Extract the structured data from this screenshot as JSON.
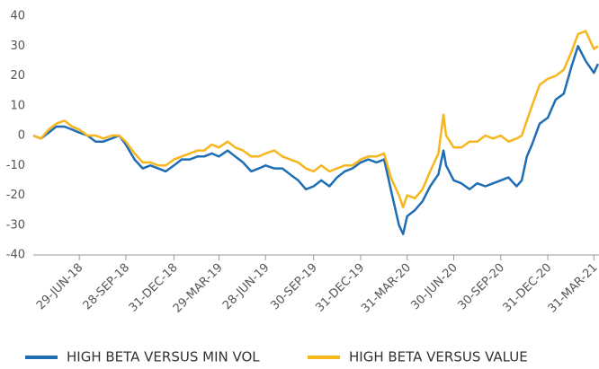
{
  "chart_data": {
    "type": "line",
    "x": [
      "2018-03-31",
      "2018-04-15",
      "2018-04-30",
      "2018-05-15",
      "2018-05-31",
      "2018-06-15",
      "2018-06-29",
      "2018-07-15",
      "2018-07-31",
      "2018-08-15",
      "2018-08-31",
      "2018-09-15",
      "2018-09-28",
      "2018-10-15",
      "2018-10-31",
      "2018-11-15",
      "2018-11-30",
      "2018-12-15",
      "2018-12-31",
      "2019-01-15",
      "2019-01-31",
      "2019-02-15",
      "2019-02-28",
      "2019-03-15",
      "2019-03-29",
      "2019-04-15",
      "2019-04-30",
      "2019-05-15",
      "2019-05-31",
      "2019-06-15",
      "2019-06-28",
      "2019-07-15",
      "2019-07-31",
      "2019-08-15",
      "2019-08-31",
      "2019-09-15",
      "2019-09-30",
      "2019-10-15",
      "2019-10-31",
      "2019-11-15",
      "2019-11-30",
      "2019-12-15",
      "2019-12-31",
      "2020-01-15",
      "2020-01-31",
      "2020-02-15",
      "2020-02-28",
      "2020-03-15",
      "2020-03-23",
      "2020-03-31",
      "2020-04-15",
      "2020-04-30",
      "2020-05-15",
      "2020-05-31",
      "2020-06-10",
      "2020-06-15",
      "2020-06-30",
      "2020-07-15",
      "2020-07-31",
      "2020-08-15",
      "2020-08-31",
      "2020-09-15",
      "2020-09-30",
      "2020-10-15",
      "2020-10-31",
      "2020-11-10",
      "2020-11-20",
      "2020-11-30",
      "2020-12-15",
      "2020-12-31",
      "2021-01-15",
      "2021-01-31",
      "2021-02-15",
      "2021-02-28",
      "2021-03-15",
      "2021-03-31",
      "2021-04-08"
    ],
    "series": [
      {
        "name": "HIGH BETA VERSUS MIN VOL",
        "color": "#1f6db4",
        "values": [
          0,
          -1,
          1,
          3,
          3,
          2,
          1,
          0,
          -2,
          -2,
          -1,
          0,
          -3,
          -8,
          -11,
          -10,
          -11,
          -12,
          -10,
          -8,
          -8,
          -7,
          -7,
          -6,
          -7,
          -5,
          -7,
          -9,
          -12,
          -11,
          -10,
          -11,
          -11,
          -13,
          -15,
          -18,
          -17,
          -15,
          -17,
          -14,
          -12,
          -11,
          -9,
          -8,
          -9,
          -8,
          -18,
          -30,
          -33,
          -27,
          -25,
          -22,
          -17,
          -13,
          -5,
          -10,
          -15,
          -16,
          -18,
          -16,
          -17,
          -16,
          -15,
          -14,
          -17,
          -15,
          -7,
          -3,
          4,
          6,
          12,
          14,
          23,
          30,
          25,
          21,
          24
        ]
      },
      {
        "name": "HIGH BETA VERSUS VALUE",
        "color": "#f6b61c",
        "values": [
          0,
          -1,
          2,
          4,
          5,
          3,
          2,
          0,
          0,
          -1,
          0,
          0,
          -2,
          -6,
          -9,
          -9,
          -10,
          -10,
          -8,
          -7,
          -6,
          -5,
          -5,
          -3,
          -4,
          -2,
          -4,
          -5,
          -7,
          -7,
          -6,
          -5,
          -7,
          -8,
          -9,
          -11,
          -12,
          -10,
          -12,
          -11,
          -10,
          -10,
          -8,
          -7,
          -7,
          -6,
          -14,
          -20,
          -24,
          -20,
          -21,
          -18,
          -12,
          -6,
          7,
          0,
          -4,
          -4,
          -2,
          -2,
          0,
          -1,
          0,
          -2,
          -1,
          0,
          5,
          10,
          17,
          19,
          20,
          22,
          28,
          34,
          35,
          29,
          30
        ]
      }
    ],
    "xlim": [
      "2018-03-31",
      "2021-04-10"
    ],
    "xticks": [
      {
        "value": "2018-06-29",
        "label": "29-JUN-18"
      },
      {
        "value": "2018-09-28",
        "label": "28-SEP-18"
      },
      {
        "value": "2018-12-31",
        "label": "31-DEC-18"
      },
      {
        "value": "2019-03-29",
        "label": "29-MAR-19"
      },
      {
        "value": "2019-06-28",
        "label": "28-JUN-19"
      },
      {
        "value": "2019-09-30",
        "label": "30-SEP-19"
      },
      {
        "value": "2019-12-31",
        "label": "31-DEC-19"
      },
      {
        "value": "2020-03-31",
        "label": "31-MAR-20"
      },
      {
        "value": "2020-06-30",
        "label": "30-JUN-20"
      },
      {
        "value": "2020-09-30",
        "label": "30-SEP-20"
      },
      {
        "value": "2020-12-31",
        "label": "31-DEC-20"
      },
      {
        "value": "2021-03-31",
        "label": "31-MAR-21"
      }
    ],
    "ylim": [
      -40,
      40
    ],
    "yticks": [
      -40,
      -30,
      -20,
      -10,
      0,
      10,
      20,
      30,
      40
    ],
    "grid": false,
    "legend": "bottom"
  }
}
